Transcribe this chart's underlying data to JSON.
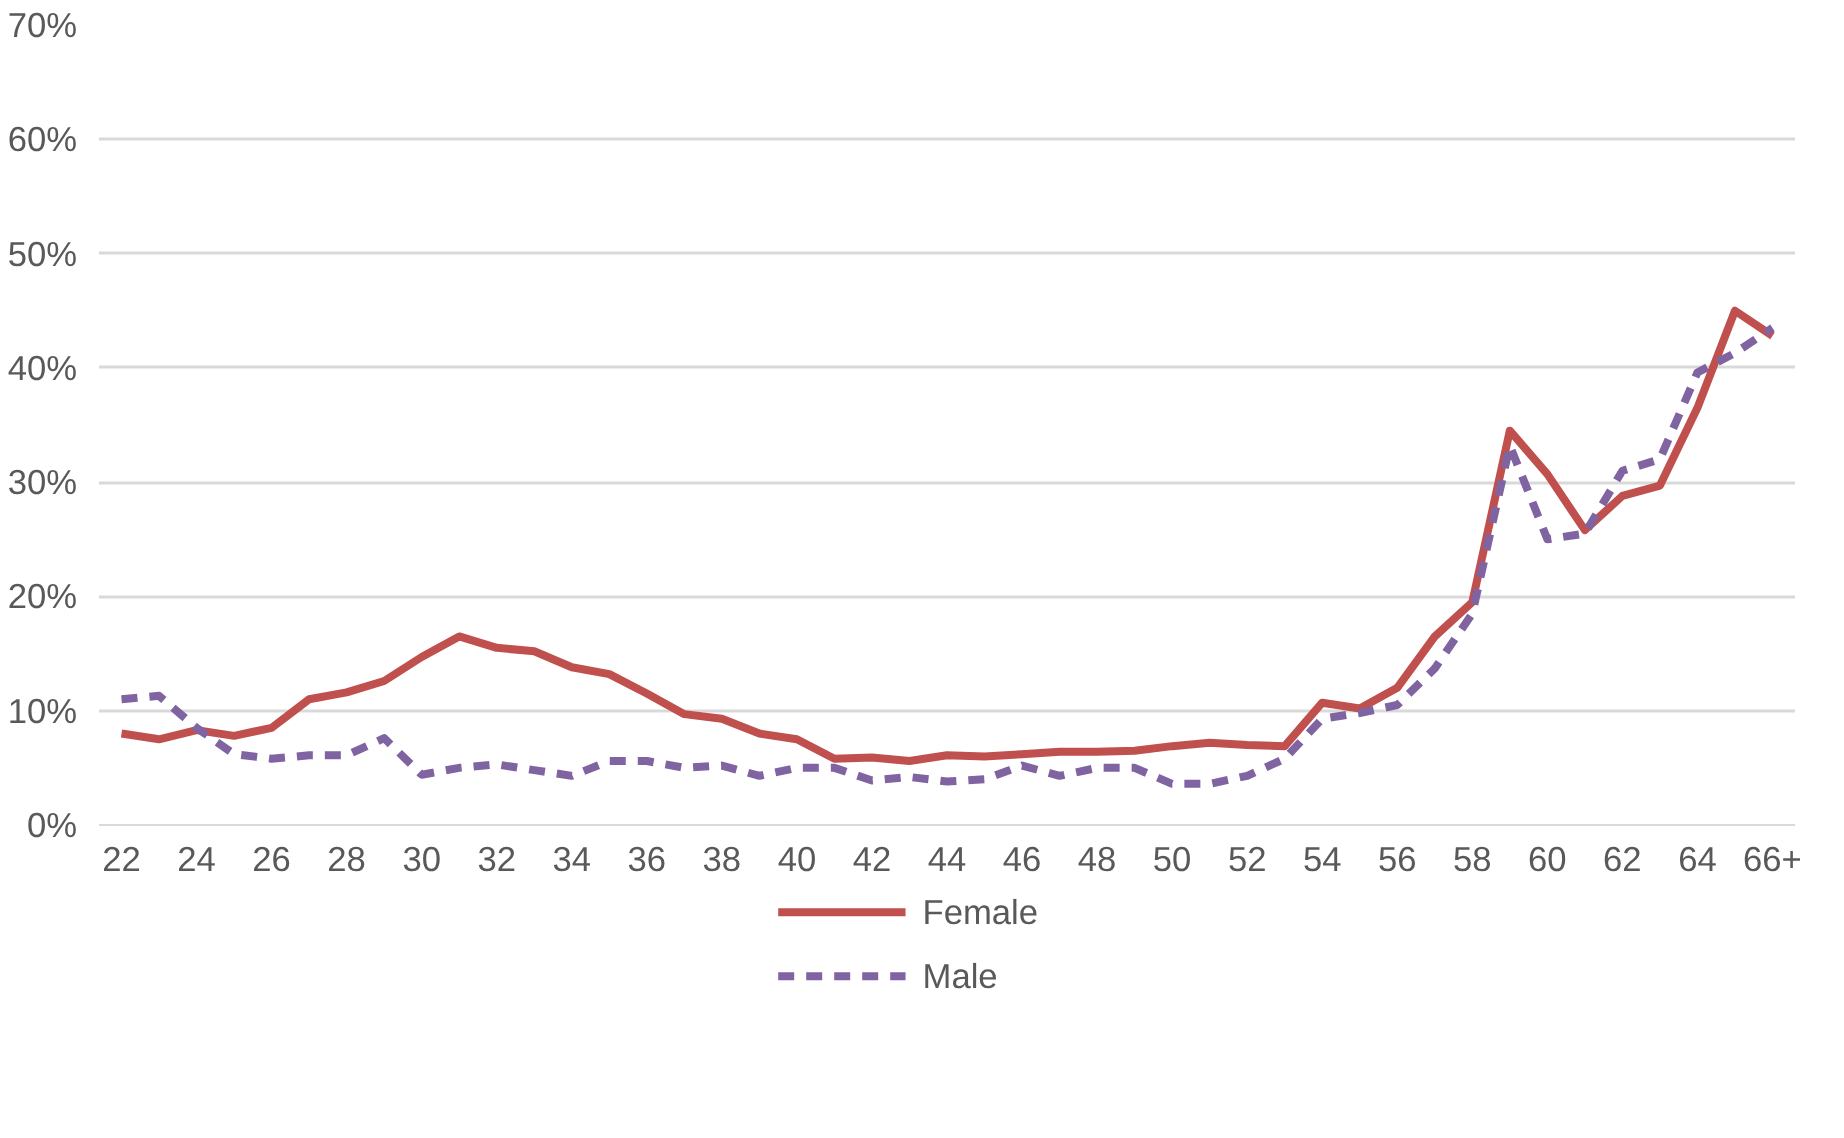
{
  "chart_data": {
    "type": "line",
    "categories": [
      "22",
      null,
      "24",
      null,
      "26",
      null,
      "28",
      null,
      "30",
      null,
      "32",
      null,
      "34",
      null,
      "36",
      null,
      "38",
      null,
      "40",
      null,
      "42",
      null,
      "44",
      null,
      "46",
      null,
      "48",
      null,
      "50",
      null,
      "52",
      null,
      "54",
      null,
      "56",
      null,
      "58",
      null,
      "60",
      null,
      "62",
      null,
      "64",
      null,
      "66+"
    ],
    "series": [
      {
        "name": "Female",
        "color": "#c0504d",
        "line_style": "solid",
        "values": [
          8.0,
          7.5,
          8.3,
          7.8,
          8.5,
          11.0,
          11.6,
          12.6,
          14.7,
          16.5,
          15.5,
          15.2,
          13.8,
          13.2,
          11.5,
          9.7,
          9.3,
          8.0,
          7.5,
          5.8,
          5.9,
          5.6,
          6.1,
          6.0,
          6.2,
          6.4,
          6.4,
          6.5,
          6.9,
          7.2,
          7.0,
          6.9,
          10.7,
          10.2,
          12.0,
          16.5,
          19.5,
          34.5,
          30.7,
          25.8,
          28.8,
          29.7,
          36.5,
          45.0,
          42.8
        ]
      },
      {
        "name": "Male",
        "color": "#8064a2",
        "line_style": "dashed",
        "values": [
          11.0,
          11.3,
          8.5,
          6.2,
          5.8,
          6.1,
          6.1,
          7.6,
          4.4,
          5.0,
          5.3,
          4.8,
          4.3,
          5.6,
          5.6,
          5.0,
          5.2,
          4.3,
          5.0,
          5.0,
          3.9,
          4.2,
          3.8,
          4.0,
          5.2,
          4.3,
          5.0,
          5.0,
          3.6,
          3.6,
          4.3,
          5.8,
          9.3,
          9.8,
          10.5,
          13.7,
          18.5,
          33.2,
          25.0,
          25.5,
          31.0,
          32.0,
          39.6,
          41.3,
          43.5
        ]
      }
    ],
    "ylim": [
      0,
      70
    ],
    "yticks": [
      {
        "value": 0,
        "label": "0%"
      },
      {
        "value": 10,
        "label": "10%"
      },
      {
        "value": 20,
        "label": "20%"
      },
      {
        "value": 30,
        "label": "30%"
      },
      {
        "value": 40,
        "label": "40%"
      },
      {
        "value": 50,
        "label": "50%"
      },
      {
        "value": 60,
        "label": "60%"
      },
      {
        "value": 70,
        "label": "70%"
      }
    ],
    "grid": "y",
    "legend": "bottom"
  }
}
